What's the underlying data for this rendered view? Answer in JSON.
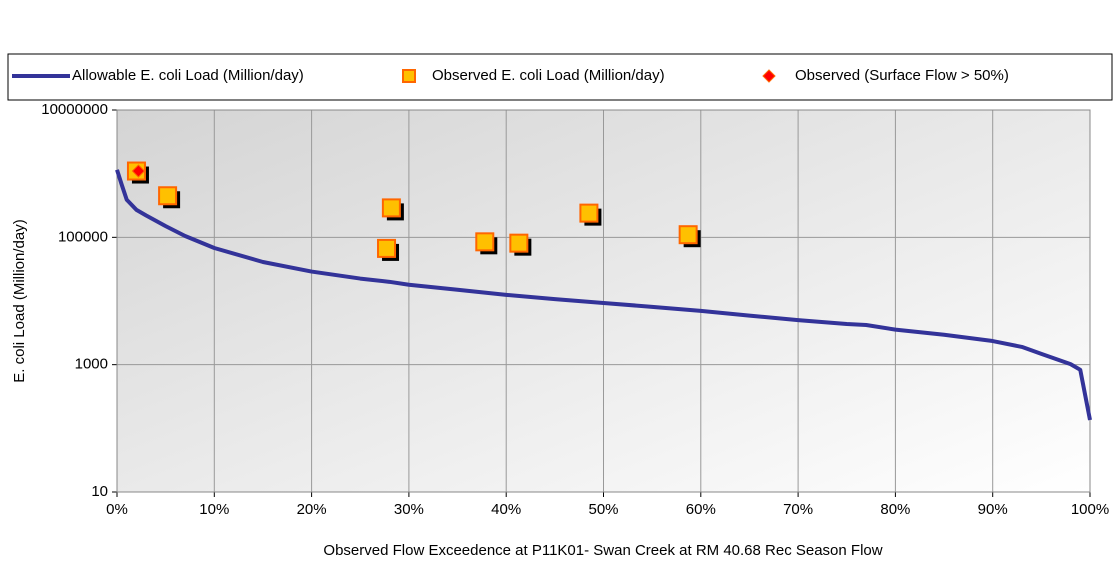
{
  "chart_data": {
    "type": "line",
    "x_label": "Observed Flow Exceedence at P11K01- Swan Creek at RM 40.68 Rec Season Flow",
    "y_label": "E. coli Load (Million/day)",
    "log_y": true,
    "grid": true,
    "legend": "top",
    "xlim": [
      0,
      100
    ],
    "xticks": [
      {
        "value": 0,
        "label": "0%"
      },
      {
        "value": 10,
        "label": "10%"
      },
      {
        "value": 20,
        "label": "20%"
      },
      {
        "value": 30,
        "label": "30%"
      },
      {
        "value": 40,
        "label": "40%"
      },
      {
        "value": 50,
        "label": "50%"
      },
      {
        "value": 60,
        "label": "60%"
      },
      {
        "value": 70,
        "label": "70%"
      },
      {
        "value": 80,
        "label": "80%"
      },
      {
        "value": 90,
        "label": "90%"
      },
      {
        "value": 100,
        "label": "100%"
      }
    ],
    "ylim": [
      10,
      10000000
    ],
    "yticks": [
      10,
      1000,
      100000,
      10000000
    ],
    "series": [
      {
        "name": "Allowable E. coli Load (Million/day)",
        "kind": "line",
        "color": "#333399",
        "x": [
          0,
          0.5,
          1,
          2,
          3,
          5,
          7,
          10,
          15,
          20,
          25,
          28,
          30,
          35,
          40,
          45,
          50,
          55,
          60,
          65,
          70,
          75,
          77,
          80,
          85,
          90,
          93,
          95,
          98,
          99,
          100
        ],
        "values": [
          1150000,
          660000,
          390000,
          270000,
          220000,
          150000,
          105000,
          68000,
          41000,
          29000,
          22500,
          20000,
          18000,
          15000,
          12500,
          10700,
          9300,
          8100,
          7000,
          5900,
          5000,
          4350,
          4200,
          3550,
          2950,
          2350,
          1900,
          1480,
          1020,
          830,
          135
        ]
      },
      {
        "name": "Observed E. coli Load (Million/day)",
        "kind": "square",
        "color": "#ffc000",
        "x": [
          2,
          5.2,
          27.7,
          28.2,
          37.8,
          41.3,
          48.5,
          58.7
        ],
        "values": [
          1100000,
          450000,
          67000,
          290000,
          85000,
          81000,
          240000,
          110000
        ]
      },
      {
        "name": "Observed (Surface Flow > 50%)",
        "kind": "diamond",
        "color": "#ff0000",
        "x": [
          2.2
        ],
        "values": [
          1100000
        ]
      }
    ]
  }
}
